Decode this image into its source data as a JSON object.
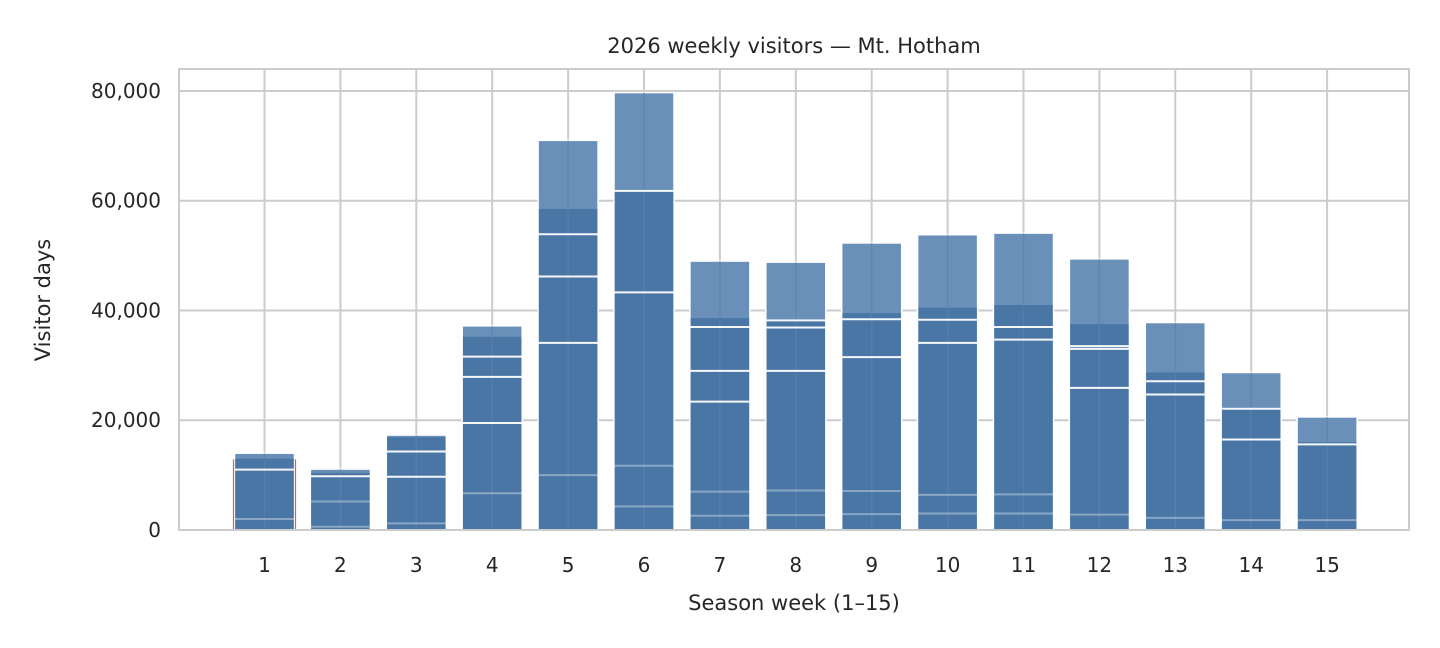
{
  "chart_data": {
    "type": "bar",
    "title": "2026 weekly visitors — Mt. Hotham",
    "xlabel": "Season week (1–15)",
    "ylabel": "Visitor days",
    "ylim": [
      0,
      84000
    ],
    "yticks": [
      0,
      20000,
      40000,
      60000,
      80000
    ],
    "ytick_labels": [
      "0",
      "20,000",
      "40,000",
      "60,000",
      "80,000"
    ],
    "grid": true,
    "categories": [
      "1",
      "2",
      "3",
      "4",
      "5",
      "6",
      "7",
      "8",
      "9",
      "10",
      "11",
      "12",
      "13",
      "14",
      "15"
    ],
    "values": [
      14000,
      11100,
      17300,
      37200,
      71000,
      79700,
      49000,
      48800,
      52300,
      53800,
      54100,
      49400,
      37800,
      28700,
      20600
    ],
    "band_top": [
      13000,
      10400,
      16900,
      35200,
      58500,
      62000,
      38600,
      38400,
      39500,
      40500,
      41000,
      37500,
      28700,
      22300,
      16000
    ],
    "segment_lines": [
      [
        11000,
        2000
      ],
      [
        9800,
        5200,
        600
      ],
      [
        14300,
        9700,
        1200
      ],
      [
        31600,
        27900,
        19500,
        6700
      ],
      [
        53900,
        46200,
        34100,
        10000
      ],
      [
        61800,
        43300,
        11700,
        4300
      ],
      [
        37000,
        29000,
        23400,
        7000,
        2600
      ],
      [
        38200,
        36900,
        29000,
        7200,
        2700
      ],
      [
        38400,
        31500,
        7100,
        2900
      ],
      [
        38300,
        34100,
        6400,
        3000
      ],
      [
        37000,
        34700,
        6500,
        3000
      ],
      [
        33500,
        33000,
        25900,
        2800
      ],
      [
        27100,
        24700,
        2200
      ],
      [
        22100,
        16500,
        1800
      ],
      [
        15600,
        1800
      ]
    ],
    "colors": {
      "bar_top": "#6a8fb8",
      "bar_main": "#4a76a6",
      "segment_line": "#ffffff",
      "grid": "#cccccc",
      "axes": "#cccccc",
      "highlight": "#e05a4f"
    },
    "highlight_category": "1"
  }
}
